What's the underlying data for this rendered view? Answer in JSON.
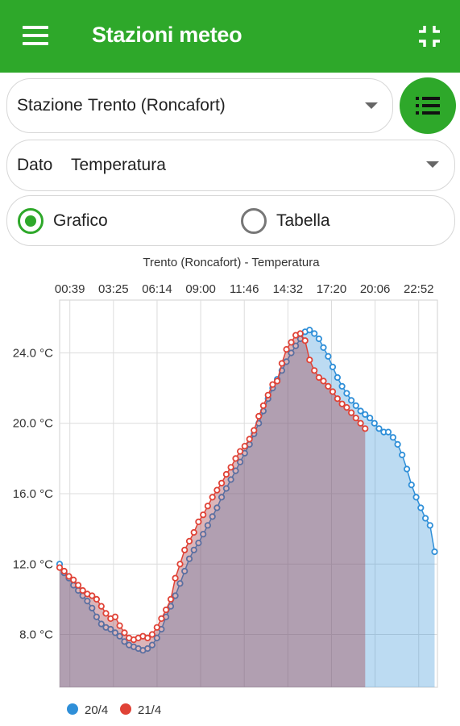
{
  "appbar": {
    "title": "Stazioni meteo"
  },
  "station": {
    "label": "Stazione",
    "value": "Trento (Roncafort)"
  },
  "dato": {
    "label": "Dato",
    "value": "Temperatura"
  },
  "view": {
    "options": [
      {
        "label": "Grafico",
        "checked": true
      },
      {
        "label": "Tabella",
        "checked": false
      }
    ]
  },
  "colors": {
    "brand": "#2ea82a",
    "series_1": "#2f8fd8",
    "series_2": "#e04236"
  },
  "icons": {
    "menu": "hamburger-icon",
    "collapse": "collapse-icon",
    "list": "list-icon",
    "dropdown": "dropdown-arrow-icon"
  },
  "chart_data": {
    "type": "area",
    "title": "Trento (Roncafort)  - Temperatura",
    "x_tick_labels": [
      "00:39",
      "03:25",
      "06:14",
      "09:00",
      "11:46",
      "14:32",
      "17:20",
      "20:06",
      "22:52"
    ],
    "y_tick_labels": [
      "8.0 °C",
      "12.0 °C",
      "16.0 °C",
      "20.0 °C",
      "24.0 °C"
    ],
    "xlim": [
      0,
      24
    ],
    "ylim": [
      5.0,
      27.0
    ],
    "x_axis_position": "top",
    "grid": true,
    "legend_position": "bottom-left",
    "series": [
      {
        "name": "20/4",
        "color": "#2f8fd8",
        "x": [
          0.0,
          0.29,
          0.59,
          0.88,
          1.18,
          1.47,
          1.76,
          2.06,
          2.35,
          2.65,
          2.94,
          3.24,
          3.53,
          3.82,
          4.12,
          4.41,
          4.71,
          5.0,
          5.29,
          5.59,
          5.88,
          6.18,
          6.47,
          6.76,
          7.06,
          7.35,
          7.65,
          7.94,
          8.24,
          8.53,
          8.82,
          9.12,
          9.41,
          9.71,
          10.0,
          10.29,
          10.59,
          10.88,
          11.18,
          11.47,
          11.76,
          12.06,
          12.35,
          12.65,
          12.94,
          13.24,
          13.53,
          13.82,
          14.12,
          14.41,
          14.71,
          15.0,
          15.29,
          15.59,
          15.88,
          16.18,
          16.47,
          16.76,
          17.06,
          17.35,
          17.65,
          17.94,
          18.24,
          18.53,
          18.82,
          19.12,
          19.41,
          19.71,
          20.0,
          20.29,
          20.59,
          20.88,
          21.18,
          21.47,
          21.76,
          22.06,
          22.35,
          22.65,
          22.94,
          23.24,
          23.53,
          23.82
        ],
        "y": [
          12.0,
          11.5,
          11.2,
          10.8,
          10.5,
          10.2,
          9.9,
          9.5,
          9.0,
          8.6,
          8.4,
          8.3,
          8.1,
          7.9,
          7.6,
          7.4,
          7.3,
          7.2,
          7.1,
          7.2,
          7.4,
          7.8,
          8.3,
          9.0,
          9.6,
          10.2,
          10.9,
          11.6,
          12.3,
          12.8,
          13.2,
          13.7,
          14.2,
          14.7,
          15.2,
          15.8,
          16.3,
          16.8,
          17.3,
          17.8,
          18.3,
          18.8,
          19.4,
          20.0,
          20.7,
          21.4,
          22.0,
          22.5,
          23.0,
          23.5,
          24.0,
          24.4,
          24.8,
          25.2,
          25.3,
          25.1,
          24.8,
          24.3,
          23.8,
          23.2,
          22.6,
          22.1,
          21.7,
          21.3,
          21.0,
          20.7,
          20.5,
          20.3,
          20.0,
          19.7,
          19.5,
          19.5,
          19.2,
          18.8,
          18.2,
          17.4,
          16.5,
          15.8,
          15.2,
          14.6,
          14.2,
          12.7
        ]
      },
      {
        "name": "21/4",
        "color": "#e04236",
        "x": [
          0.0,
          0.29,
          0.59,
          0.88,
          1.18,
          1.47,
          1.76,
          2.06,
          2.35,
          2.65,
          2.94,
          3.24,
          3.53,
          3.82,
          4.12,
          4.41,
          4.71,
          5.0,
          5.29,
          5.59,
          5.88,
          6.18,
          6.47,
          6.76,
          7.06,
          7.35,
          7.65,
          7.94,
          8.24,
          8.53,
          8.82,
          9.12,
          9.41,
          9.71,
          10.0,
          10.29,
          10.59,
          10.88,
          11.18,
          11.47,
          11.76,
          12.06,
          12.35,
          12.65,
          12.94,
          13.24,
          13.53,
          13.82,
          14.12,
          14.41,
          14.71,
          15.0,
          15.29,
          15.59,
          15.88,
          16.18,
          16.47,
          16.76,
          17.06,
          17.35,
          17.65,
          17.94,
          18.24,
          18.53,
          18.82,
          19.12,
          19.41
        ],
        "y": [
          11.8,
          11.6,
          11.3,
          11.1,
          10.8,
          10.5,
          10.3,
          10.2,
          10.0,
          9.6,
          9.2,
          8.9,
          9.0,
          8.5,
          8.1,
          7.8,
          7.7,
          7.8,
          7.9,
          7.8,
          8.0,
          8.4,
          8.9,
          9.4,
          10.0,
          11.2,
          12.0,
          12.8,
          13.3,
          13.8,
          14.4,
          14.8,
          15.3,
          15.8,
          16.2,
          16.6,
          17.1,
          17.5,
          18.0,
          18.4,
          18.7,
          19.1,
          19.6,
          20.4,
          21.0,
          21.6,
          22.2,
          22.4,
          23.4,
          24.2,
          24.6,
          25.0,
          25.1,
          24.7,
          23.6,
          23.0,
          22.6,
          22.4,
          22.1,
          21.8,
          21.4,
          21.1,
          20.9,
          20.6,
          20.3,
          20.0,
          19.7
        ]
      }
    ]
  }
}
